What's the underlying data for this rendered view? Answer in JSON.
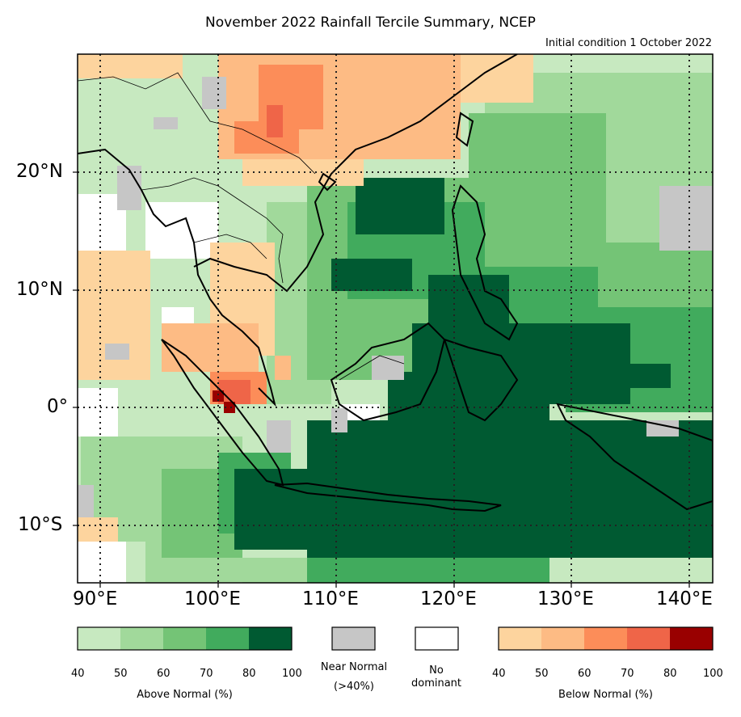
{
  "title": "November 2022 Rainfall Tercile Summary, NCEP",
  "subtitle": "Initial condition 1 October 2022",
  "map": {
    "lon_range": [
      88,
      142
    ],
    "lat_range": [
      -15,
      30
    ],
    "lon_ticks": [
      "90°E",
      "100°E",
      "110°E",
      "120°E",
      "130°E",
      "140°E"
    ],
    "lat_ticks": [
      "20°N",
      "10°N",
      "0°",
      "10°S"
    ],
    "grid": "dotted, every 10°"
  },
  "legend": {
    "above_normal": {
      "label": "Above Normal (%)",
      "ticks": [
        "40",
        "50",
        "60",
        "70",
        "80",
        "100"
      ],
      "colors": [
        "#c7e9c0",
        "#a1d99b",
        "#74c476",
        "#41ab5d",
        "#005a32"
      ]
    },
    "near_normal": {
      "label_line1": "Near Normal",
      "label_line2": "(>40%)",
      "color": "#c6c6c6"
    },
    "no_dominant": {
      "label_line1": "No",
      "label_line2": "dominant",
      "color": "#ffffff"
    },
    "below_normal": {
      "label": "Below Normal (%)",
      "ticks": [
        "40",
        "50",
        "60",
        "70",
        "80",
        "100"
      ],
      "colors": [
        "#fdd49e",
        "#fdbb84",
        "#fc8d59",
        "#ef6548",
        "#990000"
      ]
    }
  }
}
